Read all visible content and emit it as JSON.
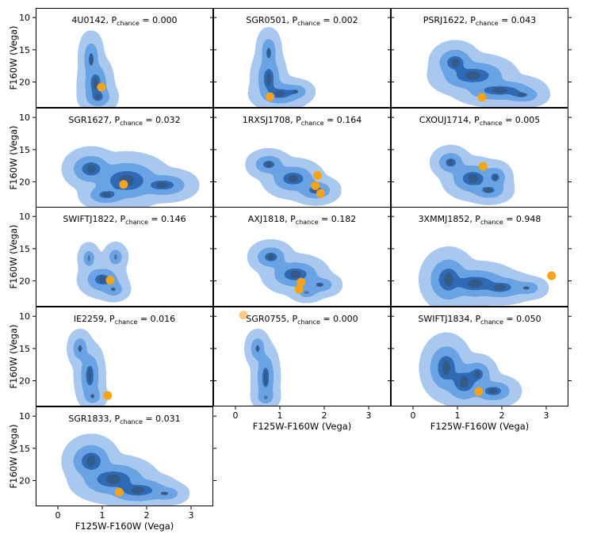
{
  "figure": {
    "ylabel": "F160W (Vega)",
    "xlabel": "F125W-F160W (Vega)",
    "xlim": [
      -0.5,
      3.5
    ],
    "ylim": [
      24.0,
      8.5
    ],
    "xticks": [
      0,
      1,
      2,
      3
    ],
    "yticks": [
      10,
      15,
      20
    ],
    "pchance_prefix": "P",
    "pchance_sub": "chance",
    "colors": {
      "kde_light": "#a9c8ef",
      "kde_mid": "#6aa3e3",
      "kde_dark": "#2d6bb5",
      "kde_core": "#3c4e63",
      "source": "#f5a31a",
      "axis": "#000000"
    }
  },
  "chart_data": [
    {
      "type": "scatter",
      "panel": "4U0142",
      "name": "4U0142",
      "pchance_value": "0.000",
      "xlabel": "F125W-F160W (Vega)",
      "ylabel": "F160W (Vega)",
      "x_range": [
        -0.5,
        3.5
      ],
      "y_range": [
        8.5,
        24.0
      ],
      "kde_blobs": [
        {
          "cx": 0.75,
          "cy": 16.5,
          "rx": 0.15,
          "ry": 3.2
        },
        {
          "cx": 0.85,
          "cy": 20.2,
          "rx": 0.25,
          "ry": 3.2
        },
        {
          "cx": 0.9,
          "cy": 22.3,
          "rx": 0.3,
          "ry": 1.6
        }
      ],
      "sources": [
        {
          "x": 0.98,
          "y": 20.8,
          "faded": false
        }
      ]
    },
    {
      "type": "scatter",
      "panel": "SGR0501",
      "name": "SGR0501",
      "pchance_value": "0.002",
      "xlabel": "F125W-F160W (Vega)",
      "ylabel": "F160W (Vega)",
      "x_range": [
        -0.5,
        3.5
      ],
      "y_range": [
        8.5,
        24.0
      ],
      "kde_blobs": [
        {
          "cx": 0.75,
          "cy": 15.5,
          "rx": 0.15,
          "ry": 2.8
        },
        {
          "cx": 0.75,
          "cy": 19.5,
          "rx": 0.25,
          "ry": 3.5
        },
        {
          "cx": 1.0,
          "cy": 21.8,
          "rx": 0.5,
          "ry": 1.6
        },
        {
          "cx": 1.35,
          "cy": 21.5,
          "rx": 0.3,
          "ry": 1.0
        }
      ],
      "sources": [
        {
          "x": 0.78,
          "y": 22.3,
          "faded": false
        }
      ]
    },
    {
      "type": "scatter",
      "panel": "PSRJ1622",
      "name": "PSRJ1622",
      "pchance_value": "0.043",
      "xlabel": "F125W-F160W (Vega)",
      "ylabel": "F160W (Vega)",
      "x_range": [
        -0.5,
        3.5
      ],
      "y_range": [
        8.5,
        24.0
      ],
      "kde_blobs": [
        {
          "cx": 0.95,
          "cy": 17.0,
          "rx": 0.4,
          "ry": 2.2
        },
        {
          "cx": 1.35,
          "cy": 19.0,
          "rx": 0.75,
          "ry": 2.2
        },
        {
          "cx": 1.95,
          "cy": 21.3,
          "rx": 0.8,
          "ry": 1.5
        },
        {
          "cx": 2.45,
          "cy": 22.0,
          "rx": 0.45,
          "ry": 1.0
        }
      ],
      "sources": [
        {
          "x": 1.55,
          "y": 22.4,
          "faded": false
        }
      ]
    },
    {
      "type": "scatter",
      "panel": "SGR1627",
      "name": "SGR1627",
      "pchance_value": "0.032",
      "xlabel": "F125W-F160W (Vega)",
      "ylabel": "F160W (Vega)",
      "x_range": [
        -0.5,
        3.5
      ],
      "y_range": [
        8.5,
        24.0
      ],
      "kde_blobs": [
        {
          "cx": 0.75,
          "cy": 18.0,
          "rx": 0.45,
          "ry": 2.2
        },
        {
          "cx": 1.55,
          "cy": 19.8,
          "rx": 0.75,
          "ry": 3.0
        },
        {
          "cx": 2.35,
          "cy": 20.5,
          "rx": 0.6,
          "ry": 1.6
        },
        {
          "cx": 1.1,
          "cy": 22.0,
          "rx": 0.45,
          "ry": 1.3
        }
      ],
      "sources": [
        {
          "x": 1.48,
          "y": 20.4,
          "faded": false
        }
      ]
    },
    {
      "type": "scatter",
      "panel": "1RXSJ1708",
      "name": "1RXSJ1708",
      "pchance_value": "0.164",
      "xlabel": "F125W-F160W (Vega)",
      "ylabel": "F160W (Vega)",
      "x_range": [
        -0.5,
        3.5
      ],
      "y_range": [
        8.5,
        24.0
      ],
      "kde_blobs": [
        {
          "cx": 0.75,
          "cy": 17.3,
          "rx": 0.35,
          "ry": 1.4
        },
        {
          "cx": 1.3,
          "cy": 19.5,
          "rx": 0.5,
          "ry": 2.0
        },
        {
          "cx": 1.8,
          "cy": 21.3,
          "rx": 0.4,
          "ry": 1.3
        }
      ],
      "sources": [
        {
          "x": 1.85,
          "y": 19.0,
          "faded": false
        },
        {
          "x": 1.8,
          "y": 20.6,
          "faded": false
        },
        {
          "x": 1.92,
          "y": 21.8,
          "faded": false
        }
      ]
    },
    {
      "type": "scatter",
      "panel": "CXOUJ1714",
      "name": "CXOUJ1714",
      "pchance_value": "0.005",
      "xlabel": "F125W-F160W (Vega)",
      "ylabel": "F160W (Vega)",
      "x_range": [
        -0.5,
        3.5
      ],
      "y_range": [
        8.5,
        24.0
      ],
      "kde_blobs": [
        {
          "cx": 0.85,
          "cy": 17.0,
          "rx": 0.3,
          "ry": 1.6
        },
        {
          "cx": 1.35,
          "cy": 19.5,
          "rx": 0.5,
          "ry": 2.2
        },
        {
          "cx": 1.85,
          "cy": 19.3,
          "rx": 0.25,
          "ry": 1.6
        },
        {
          "cx": 1.7,
          "cy": 21.3,
          "rx": 0.4,
          "ry": 1.2
        }
      ],
      "sources": [
        {
          "x": 1.58,
          "y": 17.6,
          "faded": false
        }
      ]
    },
    {
      "type": "scatter",
      "panel": "SWIFTJ1822",
      "name": "SWIFTJ1822",
      "pchance_value": "0.146",
      "xlabel": "F125W-F160W (Vega)",
      "ylabel": "F160W (Vega)",
      "x_range": [
        -0.5,
        3.5
      ],
      "y_range": [
        8.5,
        24.0
      ],
      "kde_blobs": [
        {
          "cx": 0.7,
          "cy": 16.5,
          "rx": 0.12,
          "ry": 1.6
        },
        {
          "cx": 1.3,
          "cy": 16.3,
          "rx": 0.15,
          "ry": 1.4
        },
        {
          "cx": 1.0,
          "cy": 19.8,
          "rx": 0.38,
          "ry": 1.8
        },
        {
          "cx": 1.25,
          "cy": 21.3,
          "rx": 0.25,
          "ry": 1.0
        }
      ],
      "sources": [
        {
          "x": 1.18,
          "y": 19.9,
          "faded": false
        }
      ]
    },
    {
      "type": "scatter",
      "panel": "AXJ1818",
      "name": "AXJ1818",
      "pchance_value": "0.182",
      "xlabel": "F125W-F160W (Vega)",
      "ylabel": "F160W (Vega)",
      "x_range": [
        -0.5,
        3.5
      ],
      "y_range": [
        8.5,
        24.0
      ],
      "kde_blobs": [
        {
          "cx": 0.8,
          "cy": 16.3,
          "rx": 0.35,
          "ry": 1.6
        },
        {
          "cx": 1.35,
          "cy": 19.0,
          "rx": 0.55,
          "ry": 2.0
        },
        {
          "cx": 1.9,
          "cy": 20.6,
          "rx": 0.35,
          "ry": 1.0
        },
        {
          "cx": 1.6,
          "cy": 21.8,
          "rx": 0.25,
          "ry": 0.7
        }
      ],
      "sources": [
        {
          "x": 1.48,
          "y": 20.2,
          "faded": false
        },
        {
          "x": 1.43,
          "y": 21.3,
          "faded": false
        }
      ]
    },
    {
      "type": "scatter",
      "panel": "3XMMJ1852",
      "name": "3XMMJ1852",
      "pchance_value": "0.948",
      "xlabel": "F125W-F160W (Vega)",
      "ylabel": "F160W (Vega)",
      "x_range": [
        -0.5,
        3.5
      ],
      "y_range": [
        8.5,
        24.0
      ],
      "kde_blobs": [
        {
          "cx": 0.8,
          "cy": 19.8,
          "rx": 0.45,
          "ry": 3.5
        },
        {
          "cx": 1.4,
          "cy": 20.4,
          "rx": 0.75,
          "ry": 2.2
        },
        {
          "cx": 1.95,
          "cy": 21.0,
          "rx": 0.6,
          "ry": 1.6
        },
        {
          "cx": 2.55,
          "cy": 21.1,
          "rx": 0.35,
          "ry": 0.9
        }
      ],
      "sources": [
        {
          "x": 3.12,
          "y": 19.2,
          "faded": false
        }
      ]
    },
    {
      "type": "scatter",
      "panel": "IE2259",
      "name": "IE2259",
      "pchance_value": "0.016",
      "xlabel": "F125W-F160W (Vega)",
      "ylabel": "F160W (Vega)",
      "x_range": [
        -0.5,
        3.5
      ],
      "y_range": [
        8.5,
        24.0
      ],
      "kde_blobs": [
        {
          "cx": 0.5,
          "cy": 15.0,
          "rx": 0.15,
          "ry": 2.0
        },
        {
          "cx": 0.72,
          "cy": 19.2,
          "rx": 0.2,
          "ry": 3.8
        },
        {
          "cx": 0.78,
          "cy": 22.4,
          "rx": 0.2,
          "ry": 1.2
        }
      ],
      "sources": [
        {
          "x": 1.12,
          "y": 22.3,
          "faded": false
        }
      ]
    },
    {
      "type": "scatter",
      "panel": "SGR0755",
      "name": "SGR0755",
      "pchance_value": "0.000",
      "xlabel": "F125W-F160W (Vega)",
      "ylabel": "F160W (Vega)",
      "x_range": [
        -0.5,
        3.5
      ],
      "y_range": [
        8.5,
        24.0
      ],
      "kde_blobs": [
        {
          "cx": 0.5,
          "cy": 15.0,
          "rx": 0.15,
          "ry": 2.0
        },
        {
          "cx": 0.68,
          "cy": 19.5,
          "rx": 0.18,
          "ry": 4.0
        },
        {
          "cx": 0.68,
          "cy": 22.6,
          "rx": 0.2,
          "ry": 1.0
        }
      ],
      "sources": [
        {
          "x": 0.18,
          "y": 9.8,
          "faded": true
        }
      ]
    },
    {
      "type": "scatter",
      "panel": "SWIFTJ1834",
      "name": "SWIFTJ1834",
      "pchance_value": "0.050",
      "xlabel": "F125W-F160W (Vega)",
      "ylabel": "F160W (Vega)",
      "x_range": [
        -0.5,
        3.5
      ],
      "y_range": [
        8.5,
        24.0
      ],
      "kde_blobs": [
        {
          "cx": 0.75,
          "cy": 18.0,
          "rx": 0.4,
          "ry": 3.8
        },
        {
          "cx": 1.15,
          "cy": 20.2,
          "rx": 0.45,
          "ry": 3.0
        },
        {
          "cx": 1.45,
          "cy": 19.0,
          "rx": 0.3,
          "ry": 2.0
        },
        {
          "cx": 1.8,
          "cy": 21.6,
          "rx": 0.45,
          "ry": 1.5
        }
      ],
      "sources": [
        {
          "x": 1.48,
          "y": 21.7,
          "faded": false
        }
      ]
    },
    {
      "type": "scatter",
      "panel": "SGR1833",
      "name": "SGR1833",
      "pchance_value": "0.031",
      "xlabel": "F125W-F160W (Vega)",
      "ylabel": "F160W (Vega)",
      "x_range": [
        -0.5,
        3.5
      ],
      "y_range": [
        8.5,
        24.0
      ],
      "kde_blobs": [
        {
          "cx": 0.75,
          "cy": 17.0,
          "rx": 0.45,
          "ry": 2.8
        },
        {
          "cx": 1.25,
          "cy": 19.8,
          "rx": 0.75,
          "ry": 2.5
        },
        {
          "cx": 1.8,
          "cy": 21.5,
          "rx": 0.7,
          "ry": 1.8
        },
        {
          "cx": 2.4,
          "cy": 22.0,
          "rx": 0.4,
          "ry": 0.9
        }
      ],
      "sources": [
        {
          "x": 1.38,
          "y": 21.8,
          "faded": false
        }
      ]
    }
  ]
}
